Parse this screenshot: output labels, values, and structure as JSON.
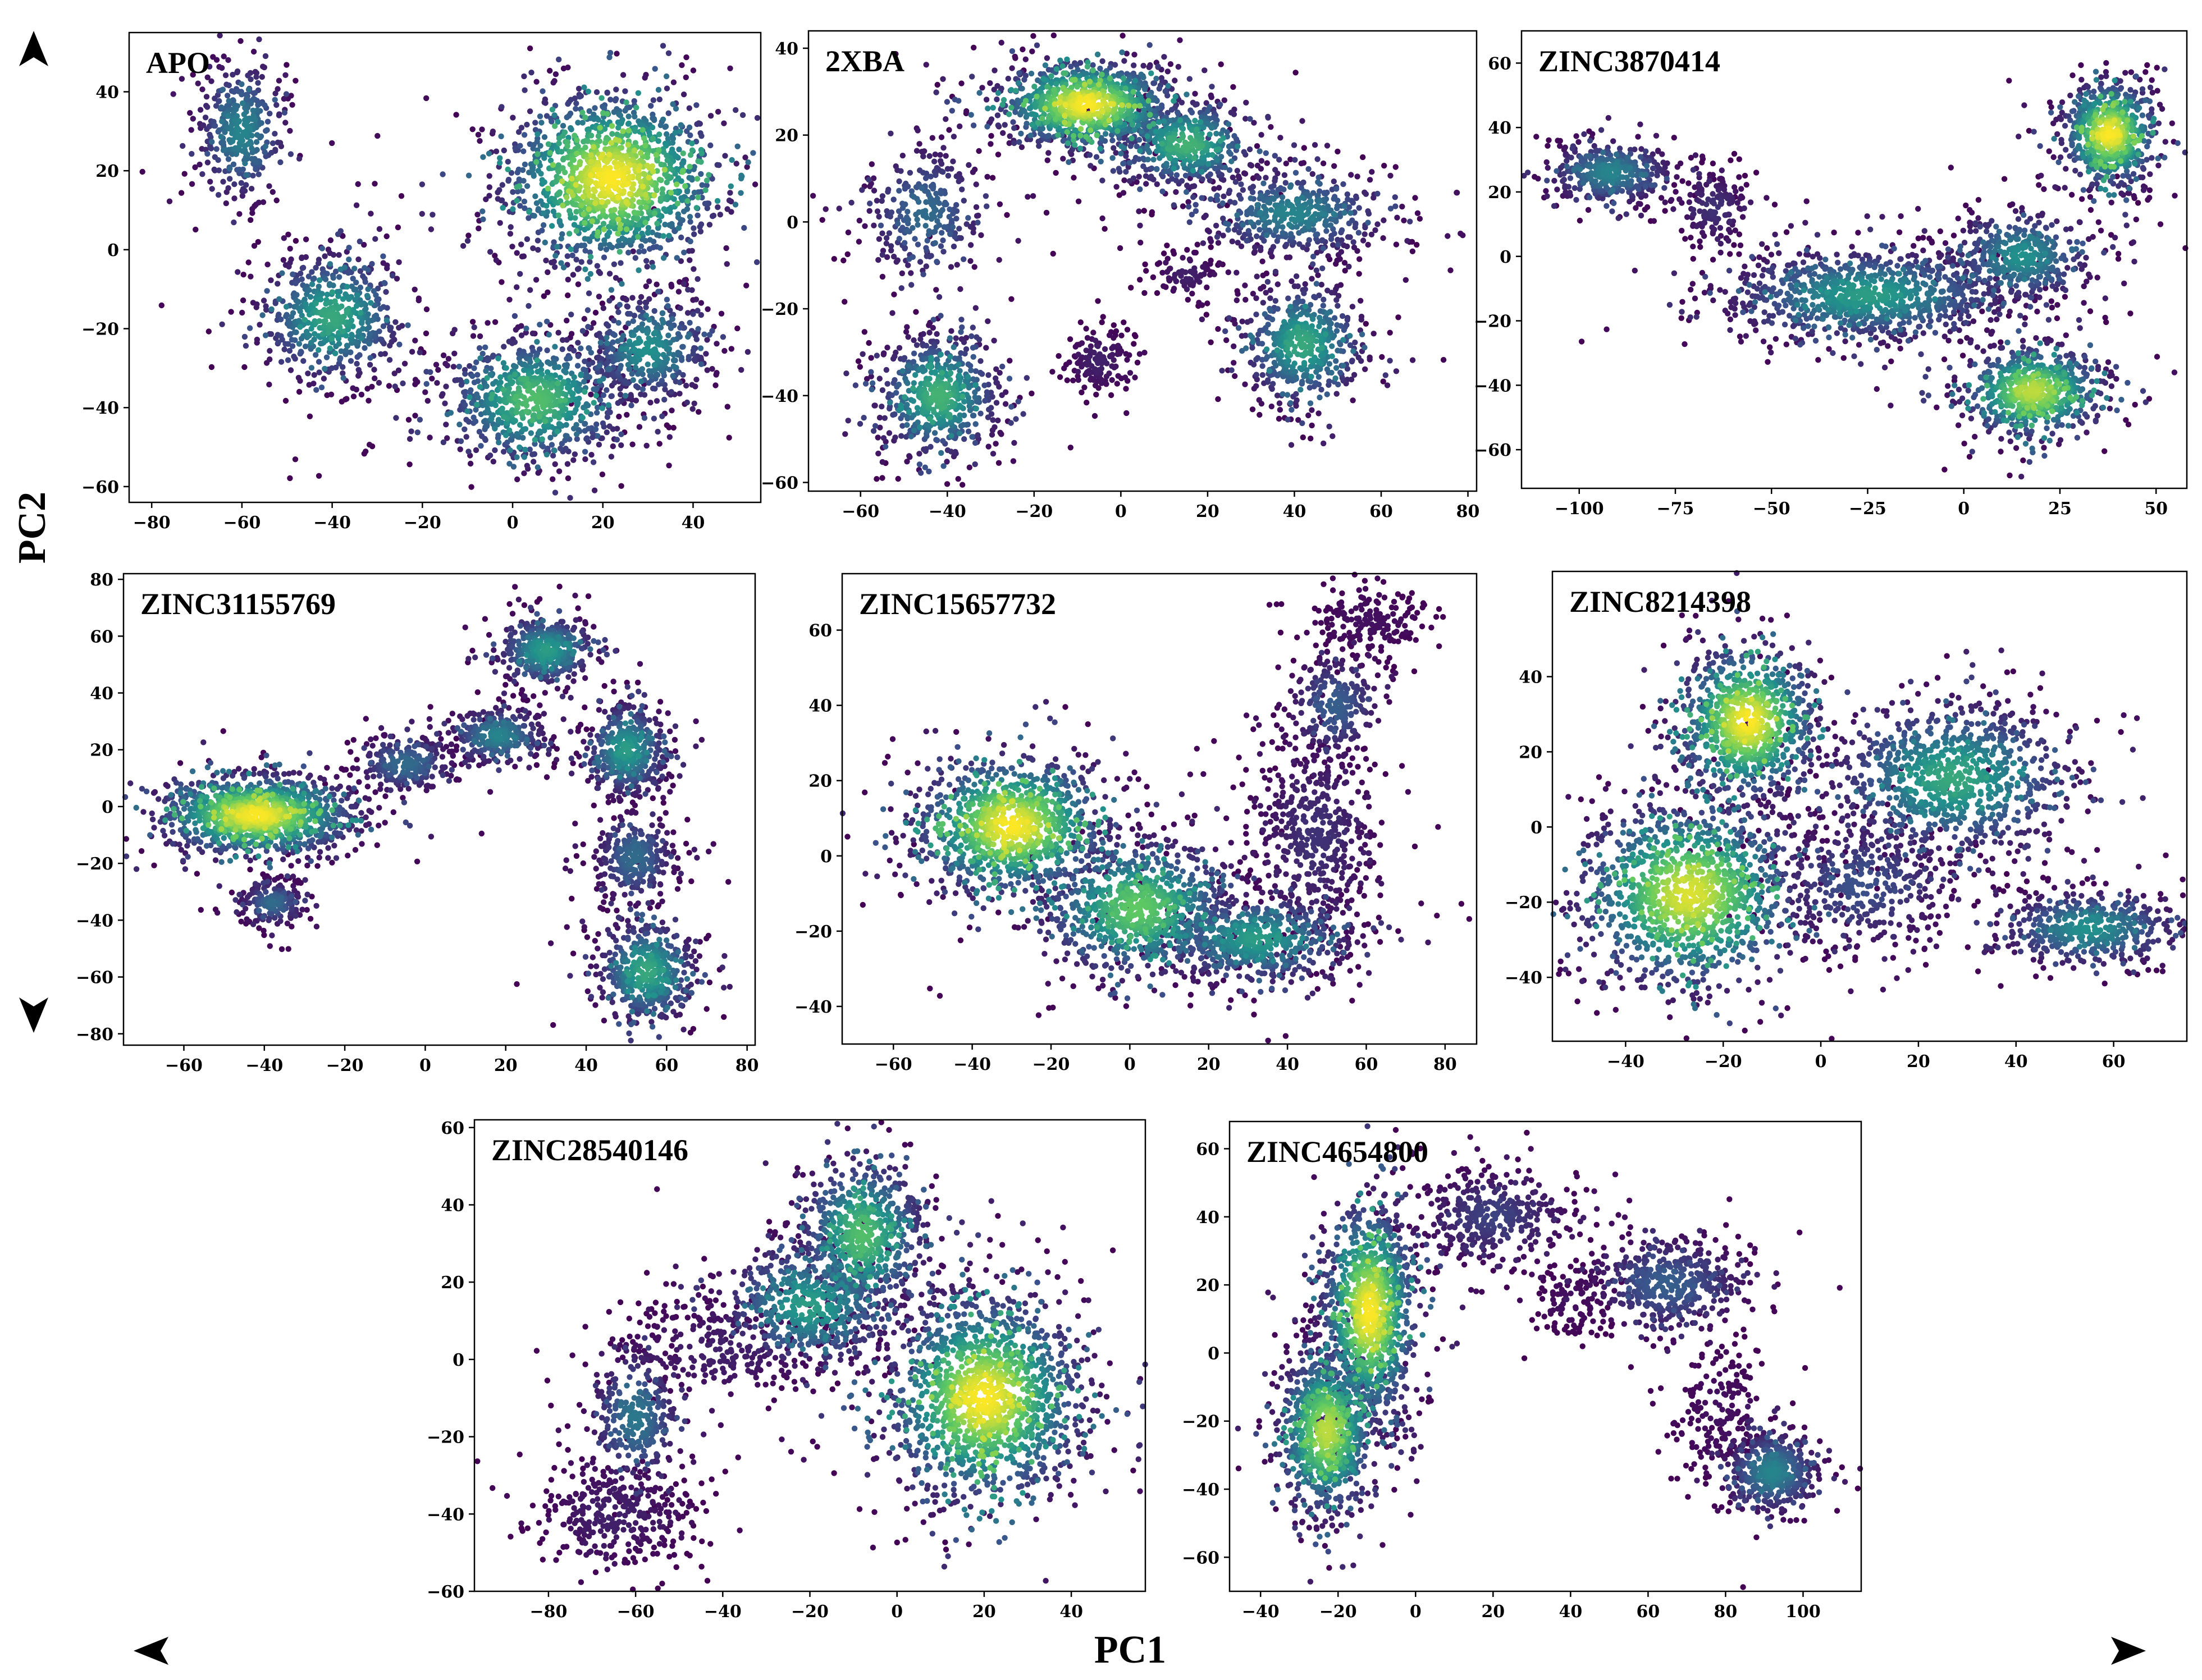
{
  "figure": {
    "x_axis_label": "PC1",
    "y_axis_label": "PC2",
    "colormap": [
      "#440154",
      "#3b528b",
      "#21918c",
      "#5ec962",
      "#fde725"
    ]
  },
  "chart_data": [
    {
      "type": "scatter",
      "title": "APO",
      "xlim": [
        -85,
        55
      ],
      "ylim": [
        -64,
        55
      ],
      "xticks": [
        -80,
        -60,
        -40,
        -20,
        0,
        20,
        40
      ],
      "yticks": [
        -60,
        -40,
        -20,
        0,
        20,
        40
      ],
      "clusters": [
        {
          "cx": 22,
          "cy": 18,
          "sx": 12,
          "sy": 11,
          "n": 1400,
          "peak": 1.0
        },
        {
          "cx": -60,
          "cy": 30,
          "sx": 5,
          "sy": 9,
          "n": 380,
          "peak": 0.45
        },
        {
          "cx": -40,
          "cy": -17,
          "sx": 8,
          "sy": 8,
          "n": 600,
          "peak": 0.6
        },
        {
          "cx": 5,
          "cy": -38,
          "sx": 10,
          "sy": 8,
          "n": 800,
          "peak": 0.7
        },
        {
          "cx": 30,
          "cy": -25,
          "sx": 7,
          "sy": 7,
          "n": 420,
          "peak": 0.5
        }
      ]
    },
    {
      "type": "scatter",
      "title": "2XBA",
      "xlim": [
        -72,
        82
      ],
      "ylim": [
        -62,
        44
      ],
      "xticks": [
        -60,
        -40,
        -20,
        0,
        20,
        40,
        60,
        80
      ],
      "yticks": [
        -60,
        -40,
        -20,
        0,
        20,
        40
      ],
      "clusters": [
        {
          "cx": -8,
          "cy": 27,
          "sx": 10,
          "sy": 5,
          "n": 1000,
          "peak": 1.0
        },
        {
          "cx": 15,
          "cy": 18,
          "sx": 8,
          "sy": 5,
          "n": 500,
          "peak": 0.65
        },
        {
          "cx": -42,
          "cy": -40,
          "sx": 7,
          "sy": 7,
          "n": 600,
          "peak": 0.65
        },
        {
          "cx": 42,
          "cy": -28,
          "sx": 7,
          "sy": 7,
          "n": 520,
          "peak": 0.6
        },
        {
          "cx": 40,
          "cy": 2,
          "sx": 11,
          "sy": 5,
          "n": 520,
          "peak": 0.45
        },
        {
          "cx": -45,
          "cy": 2,
          "sx": 7,
          "sy": 8,
          "n": 300,
          "peak": 0.35
        },
        {
          "cx": -5,
          "cy": -32,
          "sx": 4,
          "sy": 4,
          "n": 140,
          "peak": 0.1
        },
        {
          "cx": 15,
          "cy": -12,
          "sx": 4,
          "sy": 3,
          "n": 90,
          "peak": 0.1
        }
      ]
    },
    {
      "type": "scatter",
      "title": "ZINC3870414",
      "xlim": [
        -115,
        58
      ],
      "ylim": [
        -72,
        70
      ],
      "xticks": [
        -100,
        -75,
        -50,
        -25,
        0,
        25,
        50
      ],
      "yticks": [
        -60,
        -40,
        -20,
        0,
        20,
        40,
        60
      ],
      "clusters": [
        {
          "cx": 38,
          "cy": 38,
          "sx": 6,
          "sy": 8,
          "n": 700,
          "peak": 1.0
        },
        {
          "cx": 18,
          "cy": -42,
          "sx": 9,
          "sy": 7,
          "n": 700,
          "peak": 0.9
        },
        {
          "cx": -92,
          "cy": 26,
          "sx": 8,
          "sy": 5,
          "n": 420,
          "peak": 0.45
        },
        {
          "cx": -25,
          "cy": -12,
          "sx": 18,
          "sy": 7,
          "n": 1000,
          "peak": 0.55
        },
        {
          "cx": 15,
          "cy": 0,
          "sx": 9,
          "sy": 7,
          "n": 450,
          "peak": 0.5
        },
        {
          "cx": -65,
          "cy": 15,
          "sx": 5,
          "sy": 6,
          "n": 160,
          "peak": 0.15
        }
      ]
    },
    {
      "type": "scatter",
      "title": "ZINC31155769",
      "xlim": [
        -75,
        82
      ],
      "ylim": [
        -84,
        82
      ],
      "xticks": [
        -60,
        -40,
        -20,
        0,
        20,
        40,
        60,
        80
      ],
      "yticks": [
        -80,
        -60,
        -40,
        -20,
        0,
        20,
        40,
        60,
        80
      ],
      "clusters": [
        {
          "cx": -42,
          "cy": -3,
          "sx": 12,
          "sy": 7,
          "n": 1200,
          "peak": 1.0
        },
        {
          "cx": -38,
          "cy": -34,
          "sx": 4,
          "sy": 4,
          "n": 200,
          "peak": 0.35
        },
        {
          "cx": -5,
          "cy": 15,
          "sx": 6,
          "sy": 5,
          "n": 260,
          "peak": 0.35
        },
        {
          "cx": 18,
          "cy": 25,
          "sx": 6,
          "sy": 5,
          "n": 300,
          "peak": 0.45
        },
        {
          "cx": 30,
          "cy": 55,
          "sx": 6,
          "sy": 6,
          "n": 420,
          "peak": 0.55
        },
        {
          "cx": 50,
          "cy": 20,
          "sx": 5,
          "sy": 8,
          "n": 440,
          "peak": 0.55
        },
        {
          "cx": 52,
          "cy": -18,
          "sx": 5,
          "sy": 8,
          "n": 320,
          "peak": 0.35
        },
        {
          "cx": 55,
          "cy": -58,
          "sx": 6,
          "sy": 9,
          "n": 500,
          "peak": 0.6
        }
      ]
    },
    {
      "type": "scatter",
      "title": "ZINC15657732",
      "xlim": [
        -73,
        88
      ],
      "ylim": [
        -50,
        75
      ],
      "xticks": [
        -60,
        -40,
        -20,
        0,
        20,
        40,
        60,
        80
      ],
      "yticks": [
        -40,
        -20,
        0,
        20,
        40,
        60
      ],
      "clusters": [
        {
          "cx": -30,
          "cy": 8,
          "sx": 12,
          "sy": 9,
          "n": 1100,
          "peak": 1.0
        },
        {
          "cx": 2,
          "cy": -14,
          "sx": 12,
          "sy": 9,
          "n": 900,
          "peak": 0.75
        },
        {
          "cx": 32,
          "cy": -22,
          "sx": 12,
          "sy": 6,
          "n": 600,
          "peak": 0.55
        },
        {
          "cx": 47,
          "cy": 5,
          "sx": 8,
          "sy": 14,
          "n": 500,
          "peak": 0.15
        },
        {
          "cx": 52,
          "cy": 40,
          "sx": 6,
          "sy": 7,
          "n": 260,
          "peak": 0.3
        },
        {
          "cx": 60,
          "cy": 62,
          "sx": 8,
          "sy": 5,
          "n": 200,
          "peak": 0.05
        }
      ]
    },
    {
      "type": "scatter",
      "title": "ZINC8214398",
      "xlim": [
        -55,
        75
      ],
      "ylim": [
        -57,
        68
      ],
      "xticks": [
        -40,
        -20,
        0,
        20,
        40,
        60
      ],
      "yticks": [
        -40,
        -20,
        0,
        20,
        40
      ],
      "clusters": [
        {
          "cx": -15,
          "cy": 28,
          "sx": 7,
          "sy": 10,
          "n": 900,
          "peak": 1.0
        },
        {
          "cx": -27,
          "cy": -18,
          "sx": 11,
          "sy": 12,
          "n": 1300,
          "peak": 0.95
        },
        {
          "cx": 27,
          "cy": 13,
          "sx": 12,
          "sy": 10,
          "n": 1000,
          "peak": 0.6
        },
        {
          "cx": 55,
          "cy": -27,
          "sx": 9,
          "sy": 5,
          "n": 520,
          "peak": 0.5
        },
        {
          "cx": 8,
          "cy": -15,
          "sx": 10,
          "sy": 9,
          "n": 380,
          "peak": 0.25
        }
      ]
    },
    {
      "type": "scatter",
      "title": "ZINC28540146",
      "xlim": [
        -97,
        57
      ],
      "ylim": [
        -60,
        62
      ],
      "xticks": [
        -80,
        -60,
        -40,
        -20,
        0,
        20,
        40
      ],
      "yticks": [
        -60,
        -40,
        -20,
        0,
        20,
        40,
        60
      ],
      "clusters": [
        {
          "cx": 20,
          "cy": -10,
          "sx": 11,
          "sy": 13,
          "n": 1500,
          "peak": 1.0
        },
        {
          "cx": -8,
          "cy": 32,
          "sx": 7,
          "sy": 10,
          "n": 700,
          "peak": 0.7
        },
        {
          "cx": -20,
          "cy": 14,
          "sx": 10,
          "sy": 8,
          "n": 600,
          "peak": 0.55
        },
        {
          "cx": -60,
          "cy": -15,
          "sx": 5,
          "sy": 9,
          "n": 320,
          "peak": 0.4
        },
        {
          "cx": -65,
          "cy": -40,
          "sx": 9,
          "sy": 7,
          "n": 350,
          "peak": 0.1
        },
        {
          "cx": -40,
          "cy": 2,
          "sx": 12,
          "sy": 7,
          "n": 260,
          "peak": 0.1
        }
      ]
    },
    {
      "type": "scatter",
      "title": "ZINC4654800",
      "xlim": [
        -48,
        115
      ],
      "ylim": [
        -70,
        68
      ],
      "xticks": [
        -40,
        -20,
        0,
        20,
        40,
        60,
        80,
        100
      ],
      "yticks": [
        -60,
        -40,
        -20,
        0,
        20,
        40,
        60
      ],
      "clusters": [
        {
          "cx": -12,
          "cy": 12,
          "sx": 6,
          "sy": 16,
          "n": 1100,
          "peak": 1.0
        },
        {
          "cx": -23,
          "cy": -23,
          "sx": 6,
          "sy": 12,
          "n": 900,
          "peak": 0.9
        },
        {
          "cx": 20,
          "cy": 40,
          "sx": 10,
          "sy": 7,
          "n": 380,
          "peak": 0.2
        },
        {
          "cx": 65,
          "cy": 20,
          "sx": 10,
          "sy": 7,
          "n": 480,
          "peak": 0.3
        },
        {
          "cx": 92,
          "cy": -35,
          "sx": 6,
          "sy": 6,
          "n": 480,
          "peak": 0.45
        },
        {
          "cx": 78,
          "cy": -18,
          "sx": 6,
          "sy": 12,
          "n": 180,
          "peak": 0.05
        },
        {
          "cx": 40,
          "cy": 15,
          "sx": 5,
          "sy": 6,
          "n": 100,
          "peak": 0.05
        }
      ]
    }
  ]
}
